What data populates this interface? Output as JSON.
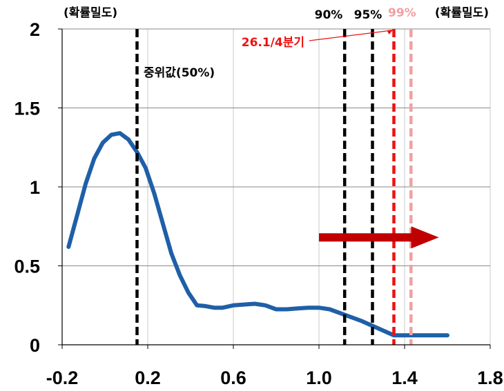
{
  "chart_data": {
    "type": "line",
    "title": "",
    "xlabel": "",
    "ylabel": "(확률밀도)",
    "ylabel_right": "(확률밀도)",
    "xlim": [
      -0.2,
      1.8
    ],
    "ylim": [
      0,
      2
    ],
    "x_ticks": [
      "-0.2",
      "0.2",
      "0.6",
      "1.0",
      "1.4",
      "1.8"
    ],
    "y_ticks": [
      "0",
      "0.5",
      "1",
      "1.5",
      "2"
    ],
    "x_tick_values": [
      -0.2,
      0.2,
      0.6,
      1.0,
      1.4,
      1.8
    ],
    "y_tick_values": [
      0,
      0.5,
      1,
      1.5,
      2
    ],
    "grid": "vertical",
    "series": [
      {
        "color": "#1f5fa8",
        "x": [
          -0.17,
          -0.13,
          -0.09,
          -0.05,
          -0.01,
          0.03,
          0.07,
          0.11,
          0.15,
          0.19,
          0.23,
          0.27,
          0.31,
          0.35,
          0.39,
          0.43,
          0.47,
          0.51,
          0.55,
          0.6,
          0.65,
          0.7,
          0.75,
          0.8,
          0.85,
          0.9,
          0.95,
          1.0,
          1.05,
          1.1,
          1.15,
          1.2,
          1.25,
          1.3,
          1.35,
          1.4,
          1.45,
          1.5,
          1.55,
          1.6
        ],
        "y": [
          0.62,
          0.82,
          1.02,
          1.18,
          1.28,
          1.33,
          1.34,
          1.3,
          1.22,
          1.12,
          0.96,
          0.77,
          0.58,
          0.44,
          0.33,
          0.25,
          0.245,
          0.235,
          0.235,
          0.25,
          0.255,
          0.26,
          0.25,
          0.225,
          0.225,
          0.23,
          0.235,
          0.235,
          0.225,
          0.2,
          0.175,
          0.15,
          0.12,
          0.09,
          0.06,
          0.06,
          0.06,
          0.06,
          0.06,
          0.06
        ]
      }
    ],
    "vlines": [
      {
        "x": 0.15,
        "color": "#000000",
        "label": "중위값(50%)"
      },
      {
        "x": 1.12,
        "color": "#000000",
        "label": "90%"
      },
      {
        "x": 1.25,
        "color": "#000000",
        "label": "95%"
      },
      {
        "x": 1.35,
        "color": "#ee1111",
        "label": "26.1/4분기"
      },
      {
        "x": 1.43,
        "color": "#f0a0a0",
        "label": "99%"
      }
    ],
    "arrow": {
      "x_from": 1.0,
      "x_to": 1.56,
      "y": 0.68,
      "color": "#c00000"
    }
  }
}
